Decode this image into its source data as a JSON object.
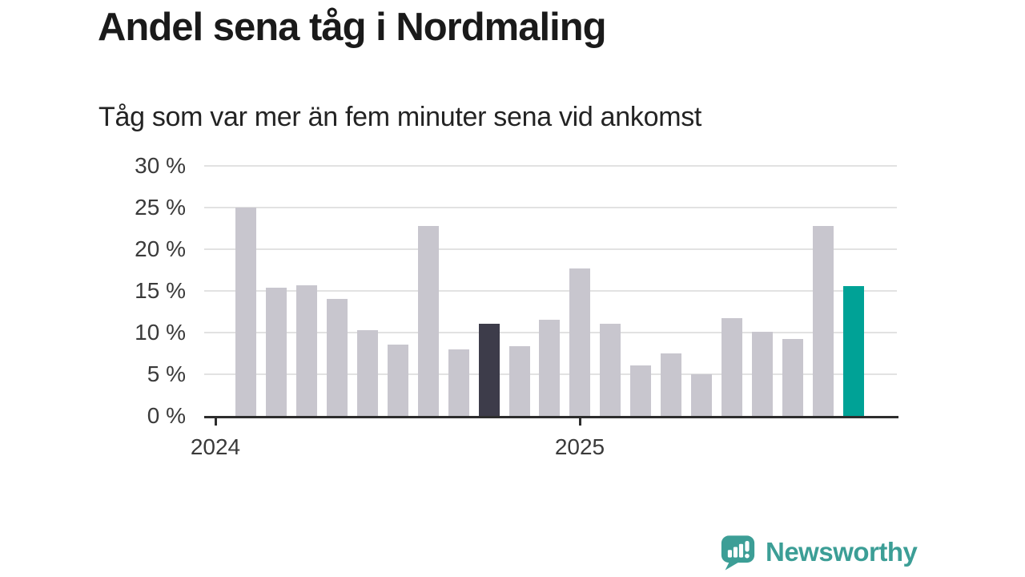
{
  "header": {
    "title": "Andel sena tåg i Nordmaling",
    "subtitle": "Tåg som var mer än fem minuter sena vid ankomst"
  },
  "chart_data": {
    "type": "bar",
    "title": "Andel sena tåg i Nordmaling",
    "subtitle": "Tåg som var mer än fem minuter sena vid ankomst",
    "unit": "percent share of trains more than five minutes late at arrival",
    "x": [
      "2024-02",
      "2024-03",
      "2024-04",
      "2024-05",
      "2024-06",
      "2024-07",
      "2024-08",
      "2024-09",
      "2024-10",
      "2024-11",
      "2024-12",
      "2025-01",
      "2025-02",
      "2025-03",
      "2025-04",
      "2025-05",
      "2025-06",
      "2025-07",
      "2025-08",
      "2025-09",
      "2025-10"
    ],
    "values": [
      25.0,
      15.4,
      15.7,
      14.0,
      10.3,
      8.6,
      22.8,
      8.0,
      11.1,
      8.4,
      11.5,
      17.7,
      11.1,
      6.1,
      7.5,
      5.0,
      11.7,
      10.1,
      9.2,
      22.8,
      15.6
    ],
    "ylim": [
      0,
      30
    ],
    "y_tick_labels": [
      "0 %",
      "5 %",
      "10 %",
      "15 %",
      "20 %",
      "25 %",
      "30 %"
    ],
    "x_tick_labels": [
      "2024",
      "2025"
    ],
    "x_tick_month_offsets": [
      0,
      12
    ],
    "grid": true,
    "legend": "none",
    "highlights": {
      "dark_index": 8,
      "teal_index": 20
    },
    "colors": {
      "bar_default": "#c8c6ce",
      "bar_dark": "#3d3c4a",
      "bar_teal": "#00a296",
      "gridline": "#e2e2e2",
      "axis": "#2d2d2d",
      "tick_text": "#3a3a3a"
    }
  },
  "footer": {
    "brand": "Newsworthy",
    "logo_icon": "newsworthy-speech-bubble-bar-chart-icon",
    "brand_color": "#3c9e96"
  }
}
